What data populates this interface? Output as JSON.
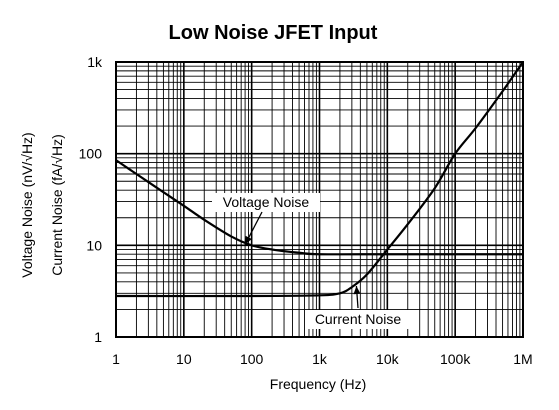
{
  "chart_data": {
    "type": "line",
    "title": "Low Noise JFET Input",
    "xlabel": "Frequency (Hz)",
    "ylabel_lines": [
      "Voltage Noise (nV/√Hz)",
      "Current Noise (fA/√Hz)"
    ],
    "x_scale": "log",
    "y_scale": "log",
    "xlim": [
      1,
      1000000
    ],
    "ylim": [
      1,
      1000
    ],
    "x_ticks": [
      {
        "value": 1,
        "label": "1"
      },
      {
        "value": 10,
        "label": "10"
      },
      {
        "value": 100,
        "label": "100"
      },
      {
        "value": 1000,
        "label": "1k"
      },
      {
        "value": 10000,
        "label": "10k"
      },
      {
        "value": 100000,
        "label": "100k"
      },
      {
        "value": 1000000,
        "label": "1M"
      }
    ],
    "y_ticks": [
      {
        "value": 1,
        "label": "1"
      },
      {
        "value": 10,
        "label": "10"
      },
      {
        "value": 100,
        "label": "100"
      },
      {
        "value": 1000,
        "label": "1k"
      }
    ],
    "grid": true,
    "series": [
      {
        "name": "Voltage Noise",
        "points": [
          {
            "x": 1,
            "y": 85
          },
          {
            "x": 2,
            "y": 60
          },
          {
            "x": 5,
            "y": 38
          },
          {
            "x": 10,
            "y": 27
          },
          {
            "x": 20,
            "y": 19
          },
          {
            "x": 50,
            "y": 12.5
          },
          {
            "x": 100,
            "y": 10
          },
          {
            "x": 200,
            "y": 9
          },
          {
            "x": 500,
            "y": 8.3
          },
          {
            "x": 1000,
            "y": 8
          },
          {
            "x": 10000,
            "y": 8
          },
          {
            "x": 100000,
            "y": 8
          },
          {
            "x": 1000000,
            "y": 8
          }
        ]
      },
      {
        "name": "Current Noise",
        "points": [
          {
            "x": 1,
            "y": 2.8
          },
          {
            "x": 100,
            "y": 2.8
          },
          {
            "x": 1000,
            "y": 2.85
          },
          {
            "x": 2000,
            "y": 3.0
          },
          {
            "x": 3000,
            "y": 3.5
          },
          {
            "x": 5000,
            "y": 4.8
          },
          {
            "x": 10000,
            "y": 9
          },
          {
            "x": 20000,
            "y": 17
          },
          {
            "x": 50000,
            "y": 42
          },
          {
            "x": 100000,
            "y": 100
          },
          {
            "x": 200000,
            "y": 190
          },
          {
            "x": 500000,
            "y": 480
          },
          {
            "x": 1000000,
            "y": 1000
          }
        ]
      }
    ],
    "annotations": [
      {
        "text": "Voltage Noise",
        "series": "Voltage Noise",
        "point": {
          "x": 80,
          "y": 10.2
        }
      },
      {
        "text": "Current Noise",
        "series": "Current Noise",
        "point": {
          "x": 3500,
          "y": 3.6
        }
      }
    ]
  }
}
